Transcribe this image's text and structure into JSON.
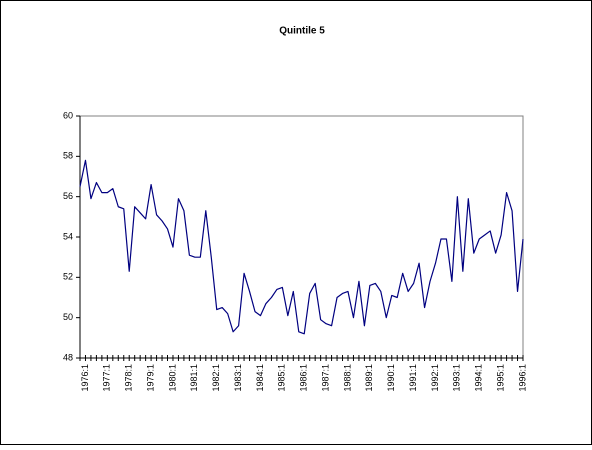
{
  "chart_data": {
    "type": "line",
    "title": "Quintile 5",
    "categories": [
      null,
      "1976:1",
      null,
      null,
      null,
      "1977:1",
      null,
      null,
      null,
      "1978:1",
      null,
      null,
      null,
      "1979:1",
      null,
      null,
      null,
      "1980:1",
      null,
      null,
      null,
      "1981:1",
      null,
      null,
      null,
      "1982:1",
      null,
      null,
      null,
      "1983:1",
      null,
      null,
      null,
      "1984:1",
      null,
      null,
      null,
      "1985:1",
      null,
      null,
      null,
      "1986:1",
      null,
      null,
      null,
      "1987:1",
      null,
      null,
      null,
      "1988:1",
      null,
      null,
      null,
      "1989:1",
      null,
      null,
      null,
      "1990:1",
      null,
      null,
      null,
      "1991:1",
      null,
      null,
      null,
      "1992:1",
      null,
      null,
      null,
      "1993:1",
      null,
      null,
      null,
      "1994:1",
      null,
      null,
      null,
      "1995:1",
      null,
      null,
      null,
      "1996:1"
    ],
    "series": [
      {
        "color": "#000080",
        "values": [
          56.5,
          57.8,
          55.9,
          56.7,
          56.2,
          56.2,
          56.4,
          55.5,
          55.4,
          52.3,
          55.5,
          55.2,
          54.9,
          56.6,
          55.1,
          54.8,
          54.4,
          53.5,
          55.9,
          55.3,
          53.1,
          53.0,
          53.0,
          55.3,
          53.0,
          50.4,
          50.5,
          50.2,
          49.3,
          49.6,
          52.2,
          51.3,
          50.3,
          50.1,
          50.7,
          51.0,
          51.4,
          51.5,
          50.1,
          51.3,
          49.3,
          49.2,
          51.2,
          51.7,
          49.9,
          49.7,
          49.6,
          51.0,
          51.2,
          51.3,
          50.0,
          51.8,
          49.6,
          51.6,
          51.7,
          51.3,
          50.0,
          51.1,
          51.0,
          52.2,
          51.3,
          51.7,
          52.7,
          50.5,
          51.8,
          52.7,
          53.9,
          53.9,
          51.8,
          56.0,
          52.3,
          55.9,
          53.2,
          53.9,
          54.1,
          54.3,
          53.2,
          54.1,
          56.2,
          55.3,
          51.3,
          53.9
        ]
      }
    ],
    "ylim": [
      48,
      60
    ],
    "yticks": [
      48,
      50,
      52,
      54,
      56,
      58,
      60
    ]
  }
}
